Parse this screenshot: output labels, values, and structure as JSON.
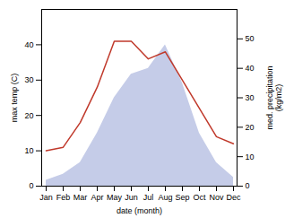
{
  "chart_data": {
    "type": "line",
    "categories": [
      "Jan",
      "Feb",
      "Mar",
      "Apr",
      "May",
      "Jun",
      "Jul",
      "Aug",
      "Sep",
      "Oct",
      "Nov",
      "Dec"
    ],
    "xlabel": "date (month)",
    "ylabel": "max temp (C)",
    "y2label": "med. precipitation\n(kg/m2)",
    "series": [
      {
        "type": "area",
        "axis": "y2",
        "color": "#c5cce8",
        "values": [
          2,
          4,
          8,
          18,
          30,
          38,
          40,
          48,
          35,
          18,
          8,
          3
        ]
      },
      {
        "type": "line",
        "color": "#c0392b",
        "values": [
          10,
          11,
          18,
          28,
          41,
          41,
          36,
          38,
          30,
          22,
          14,
          12
        ]
      }
    ],
    "ylim": [
      0,
      50
    ],
    "yticks": [
      0,
      10,
      20,
      30,
      40
    ],
    "y2lim": [
      0,
      60
    ],
    "y2ticks": [
      0,
      10,
      20,
      30,
      40,
      50
    ]
  }
}
